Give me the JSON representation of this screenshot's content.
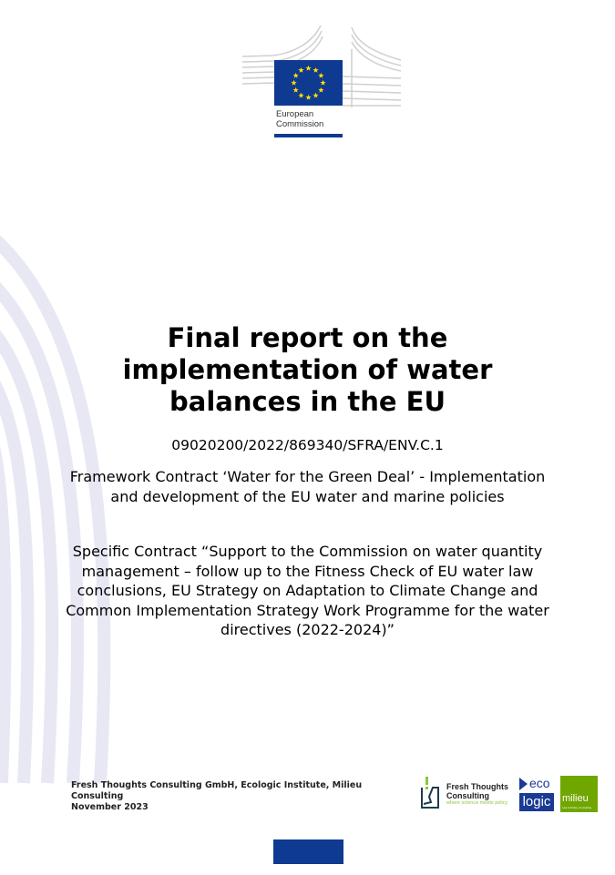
{
  "logo": {
    "org_line1": "European",
    "org_line2": "Commission"
  },
  "title": {
    "line1": "Final report on the",
    "line2": "implementation of water",
    "line3": "balances in the EU"
  },
  "contract_code": "09020200/2022/869340/SFRA/ENV.C.1",
  "framework_contract": "Framework Contract ‘Water for the Green Deal’ - Implementation and development of the EU water and marine policies",
  "specific_contract": "Specific Contract “Support to the Commission on water quantity management – follow up to the Fitness Check of EU water law conclusions, EU Strategy on Adaptation to Climate Change and Common Implementation Strategy Work Programme for the water directives (2022-2024)”",
  "footer": {
    "authors": "Fresh Thoughts Consulting GmbH, Ecologic Institute, Milieu Consulting",
    "date": "November 2023"
  },
  "partner_logos": {
    "fresh_thoughts": {
      "name1": "Fresh Thoughts",
      "name2": "Consulting",
      "tagline": "where science meets policy"
    },
    "ecologic": {
      "top": "eco",
      "bottom": "logic"
    },
    "milieu": {
      "name": "milieu",
      "tagline": "Law & Policy Consulting"
    }
  },
  "colors": {
    "eu_blue": "#0e3a91",
    "eu_star": "#ffdd00",
    "milieu_green": "#6fa600",
    "background_stripes": "#e6e6f3"
  }
}
